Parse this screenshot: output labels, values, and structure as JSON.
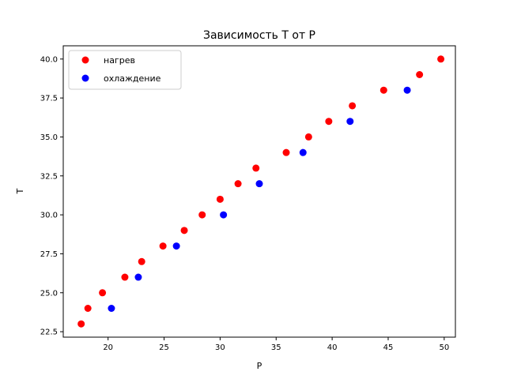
{
  "chart_data": {
    "type": "scatter",
    "title": "Зависимость T от P",
    "xlabel": "P",
    "ylabel": "T",
    "xlim": [
      16.0,
      51.0
    ],
    "ylim": [
      22.15,
      40.85
    ],
    "xticks": [
      20,
      25,
      30,
      35,
      40,
      45,
      50
    ],
    "xtick_labels": [
      "20",
      "25",
      "30",
      "35",
      "40",
      "45",
      "50"
    ],
    "yticks": [
      22.5,
      25.0,
      27.5,
      30.0,
      32.5,
      35.0,
      37.5,
      40.0
    ],
    "ytick_labels": [
      "22.5",
      "25.0",
      "27.5",
      "30.0",
      "32.5",
      "35.0",
      "37.5",
      "40.0"
    ],
    "grid": false,
    "legend_position": "upper-left",
    "series": [
      {
        "name": "нагрев",
        "color": "#ff0000",
        "points": [
          {
            "x": 17.6,
            "y": 23.0
          },
          {
            "x": 18.2,
            "y": 24.0
          },
          {
            "x": 19.5,
            "y": 25.0
          },
          {
            "x": 21.5,
            "y": 26.0
          },
          {
            "x": 23.0,
            "y": 27.0
          },
          {
            "x": 24.9,
            "y": 28.0
          },
          {
            "x": 26.8,
            "y": 29.0
          },
          {
            "x": 28.4,
            "y": 30.0
          },
          {
            "x": 30.0,
            "y": 31.0
          },
          {
            "x": 31.6,
            "y": 32.0
          },
          {
            "x": 33.2,
            "y": 33.0
          },
          {
            "x": 35.9,
            "y": 34.0
          },
          {
            "x": 37.9,
            "y": 35.0
          },
          {
            "x": 39.7,
            "y": 36.0
          },
          {
            "x": 41.8,
            "y": 37.0
          },
          {
            "x": 44.6,
            "y": 38.0
          },
          {
            "x": 47.8,
            "y": 39.0
          },
          {
            "x": 49.7,
            "y": 40.0
          }
        ]
      },
      {
        "name": "охлаждение",
        "color": "#0000ff",
        "points": [
          {
            "x": 20.3,
            "y": 24.0
          },
          {
            "x": 22.7,
            "y": 26.0
          },
          {
            "x": 26.1,
            "y": 28.0
          },
          {
            "x": 30.3,
            "y": 30.0
          },
          {
            "x": 33.5,
            "y": 32.0
          },
          {
            "x": 37.4,
            "y": 34.0
          },
          {
            "x": 41.6,
            "y": 36.0
          },
          {
            "x": 46.7,
            "y": 38.0
          }
        ]
      }
    ]
  }
}
